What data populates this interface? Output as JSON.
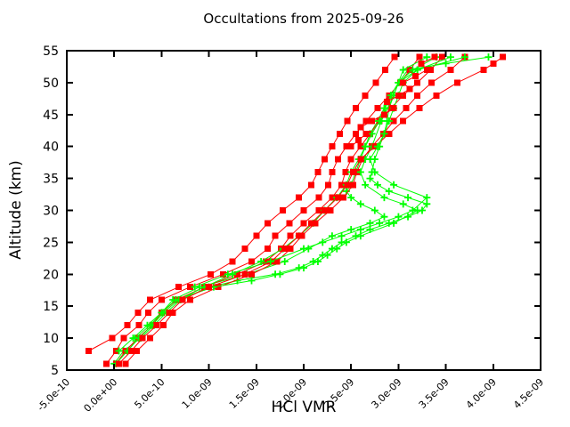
{
  "figure": {
    "title": "Occultations from 2025-09-26",
    "xlabel": "HCl VMR",
    "ylabel": "Altitude (km)"
  },
  "colors": {
    "background": "#ffffff",
    "axis": "#000000",
    "series_red": "#ff0000",
    "series_green": "#00ff00"
  },
  "chart_data": {
    "type": "line",
    "title": "Occultations from 2025-09-26",
    "xlabel": "HCl VMR",
    "ylabel": "Altitude (km)",
    "grid": false,
    "legend": "none",
    "x_units_note": "x values stored in units of 1e-9 VMR",
    "x_axis": {
      "min": -0.5,
      "max": 4.5,
      "tick_values": [
        -0.5,
        0.0,
        0.5,
        1.0,
        1.5,
        2.0,
        2.5,
        3.0,
        3.5,
        4.0,
        4.5
      ],
      "tick_labels": [
        "-5.0e-10",
        "0.0e+00",
        "5.0e-10",
        "1.0e-09",
        "1.5e-09",
        "2.0e-09",
        "2.5e-09",
        "3.0e-09",
        "3.5e-09",
        "4.0e-09",
        "4.5e-09"
      ]
    },
    "y_axis": {
      "min": 5,
      "max": 55,
      "tick_values": [
        5,
        10,
        15,
        20,
        25,
        30,
        35,
        40,
        45,
        50,
        55
      ],
      "tick_labels": [
        "5",
        "10",
        "15",
        "20",
        "25",
        "30",
        "35",
        "40",
        "45",
        "50",
        "55"
      ]
    },
    "series": [
      {
        "name": "occultation-profile-red-1",
        "color": "#ff0000",
        "marker": "square",
        "alt_km": [
          8,
          10,
          12,
          14,
          16,
          18,
          20,
          22,
          24,
          26,
          28,
          30,
          32,
          34,
          36,
          38,
          40,
          42,
          44,
          46,
          48,
          50,
          52,
          54
        ],
        "vmr_1e9": [
          -0.27,
          -0.02,
          0.14,
          0.25,
          0.38,
          0.68,
          1.02,
          1.25,
          1.38,
          1.5,
          1.62,
          1.78,
          1.95,
          2.08,
          2.15,
          2.22,
          2.3,
          2.38,
          2.46,
          2.55,
          2.65,
          2.76,
          2.86,
          2.96
        ]
      },
      {
        "name": "occultation-profile-green-1",
        "color": "#00ff00",
        "marker": "plus",
        "alt_km": [
          6,
          8,
          10,
          12,
          14,
          16,
          18,
          19,
          20,
          21,
          22,
          23,
          24,
          25,
          26,
          27,
          28,
          29,
          30,
          31,
          32,
          33,
          34,
          35,
          36,
          38,
          40,
          42,
          44,
          46,
          48,
          50,
          52,
          53,
          54
        ],
        "vmr_1e9": [
          0.0,
          0.1,
          0.28,
          0.42,
          0.55,
          0.7,
          1.0,
          1.3,
          1.7,
          1.95,
          2.1,
          2.2,
          2.3,
          2.4,
          2.55,
          2.7,
          2.9,
          3.1,
          3.25,
          3.3,
          3.1,
          2.9,
          2.78,
          2.7,
          2.72,
          2.75,
          2.8,
          2.85,
          2.88,
          2.9,
          2.95,
          3.0,
          3.1,
          3.5,
          3.95
        ]
      },
      {
        "name": "occultation-profile-red-2",
        "color": "#ff0000",
        "marker": "square",
        "alt_km": [
          6,
          8,
          10,
          12,
          14,
          16,
          18,
          20,
          22,
          24,
          26,
          28,
          30,
          32,
          34,
          36,
          38,
          40,
          42,
          44,
          46,
          48,
          50,
          52,
          54
        ],
        "vmr_1e9": [
          -0.08,
          0.02,
          0.1,
          0.26,
          0.36,
          0.5,
          0.8,
          1.15,
          1.45,
          1.62,
          1.7,
          1.85,
          2.0,
          2.16,
          2.26,
          2.3,
          2.36,
          2.45,
          2.55,
          2.66,
          2.78,
          2.9,
          3.02,
          3.12,
          3.22
        ]
      },
      {
        "name": "occultation-profile-green-2",
        "color": "#00ff00",
        "marker": "plus",
        "alt_km": [
          8,
          10,
          12,
          14,
          16,
          18,
          20,
          22,
          24,
          26,
          27,
          28,
          29,
          30,
          31,
          32,
          33,
          34,
          36,
          38,
          40,
          42,
          44,
          46,
          48,
          50,
          52,
          54
        ],
        "vmr_1e9": [
          0.05,
          0.2,
          0.35,
          0.5,
          0.62,
          0.9,
          1.4,
          1.8,
          2.05,
          2.3,
          2.5,
          2.7,
          2.85,
          2.75,
          2.6,
          2.5,
          2.45,
          2.5,
          2.55,
          2.6,
          2.65,
          2.7,
          2.78,
          2.85,
          2.92,
          3.0,
          3.15,
          3.4
        ]
      },
      {
        "name": "occultation-profile-red-3",
        "color": "#ff0000",
        "marker": "square",
        "alt_km": [
          6,
          8,
          10,
          12,
          14,
          16,
          18,
          20,
          22,
          24,
          26,
          28,
          30,
          32,
          34,
          36,
          38,
          40,
          42,
          44,
          46,
          48,
          50,
          52,
          54
        ],
        "vmr_1e9": [
          0.02,
          0.12,
          0.25,
          0.4,
          0.5,
          0.66,
          0.95,
          1.3,
          1.6,
          1.76,
          1.86,
          2.0,
          2.16,
          2.3,
          2.4,
          2.44,
          2.5,
          2.6,
          2.7,
          2.8,
          2.92,
          3.05,
          3.2,
          3.34,
          3.46
        ]
      },
      {
        "name": "occultation-profile-green-3",
        "color": "#00ff00",
        "marker": "plus",
        "alt_km": [
          6,
          8,
          10,
          12,
          14,
          16,
          18,
          20,
          22,
          24,
          26,
          28,
          30,
          32,
          34,
          36,
          38,
          40,
          42,
          44,
          46,
          48,
          50,
          52,
          54
        ],
        "vmr_1e9": [
          0.02,
          0.14,
          0.26,
          0.4,
          0.52,
          0.68,
          0.95,
          1.25,
          1.55,
          1.78,
          1.95,
          2.1,
          2.22,
          2.35,
          2.45,
          2.5,
          2.58,
          2.65,
          2.72,
          2.8,
          2.86,
          2.92,
          3.0,
          3.2,
          3.55
        ]
      },
      {
        "name": "occultation-profile-red-4",
        "color": "#ff0000",
        "marker": "square",
        "alt_km": [
          6,
          8,
          10,
          12,
          14,
          16,
          18,
          20,
          22,
          24,
          26,
          28,
          30,
          32,
          34,
          36,
          38,
          40,
          42,
          44,
          46,
          48,
          50,
          52,
          54
        ],
        "vmr_1e9": [
          0.12,
          0.24,
          0.38,
          0.52,
          0.62,
          0.8,
          1.1,
          1.45,
          1.72,
          1.86,
          1.98,
          2.12,
          2.28,
          2.42,
          2.52,
          2.56,
          2.62,
          2.72,
          2.84,
          2.95,
          3.08,
          3.2,
          3.35,
          3.55,
          3.7
        ]
      },
      {
        "name": "occultation-profile-green-4",
        "color": "#00ff00",
        "marker": "plus",
        "alt_km": [
          10,
          12,
          14,
          16,
          18,
          19,
          20,
          21,
          22,
          23,
          24,
          25,
          26,
          28,
          30,
          31,
          32,
          34,
          36,
          38,
          40,
          44,
          48,
          52,
          54
        ],
        "vmr_1e9": [
          0.22,
          0.38,
          0.5,
          0.65,
          1.05,
          1.45,
          1.75,
          2.0,
          2.15,
          2.25,
          2.35,
          2.45,
          2.6,
          2.95,
          3.2,
          3.05,
          2.85,
          2.65,
          2.6,
          2.65,
          2.72,
          2.82,
          2.95,
          3.05,
          3.3
        ]
      },
      {
        "name": "occultation-profile-red-5",
        "color": "#ff0000",
        "marker": "square",
        "alt_km": [
          6,
          8,
          10,
          12,
          14,
          16,
          18,
          20,
          22,
          24,
          26,
          28,
          30,
          32,
          34,
          36,
          38,
          40,
          42,
          44,
          46,
          48,
          50,
          52,
          53,
          54
        ],
        "vmr_1e9": [
          0.05,
          0.18,
          0.3,
          0.45,
          0.58,
          0.72,
          1.0,
          1.38,
          1.66,
          1.8,
          1.95,
          2.08,
          2.22,
          2.36,
          2.46,
          2.52,
          2.6,
          2.75,
          2.9,
          3.05,
          3.22,
          3.4,
          3.62,
          3.9,
          4.0,
          4.1
        ]
      },
      {
        "name": "occultation-profile-green-5",
        "color": "#00ff00",
        "marker": "plus",
        "alt_km": [
          18,
          20,
          22,
          24,
          25,
          26,
          27,
          28,
          29,
          30,
          32,
          34,
          36,
          38,
          40,
          42,
          44,
          46,
          48,
          50,
          52,
          54
        ],
        "vmr_1e9": [
          0.85,
          1.2,
          1.65,
          2.0,
          2.2,
          2.4,
          2.6,
          2.8,
          3.0,
          3.15,
          3.3,
          2.95,
          2.75,
          2.7,
          2.78,
          2.85,
          2.9,
          2.95,
          3.0,
          3.05,
          3.2,
          3.7
        ]
      },
      {
        "name": "occultation-profile-red-6",
        "color": "#ff0000",
        "marker": "square",
        "alt_km": [
          40,
          41,
          42,
          43,
          44,
          45,
          46,
          47,
          48,
          49,
          50,
          51,
          52,
          53,
          54
        ],
        "vmr_1e9": [
          2.5,
          2.58,
          2.66,
          2.6,
          2.72,
          2.85,
          2.95,
          2.88,
          3.0,
          3.12,
          3.05,
          3.18,
          3.3,
          3.24,
          3.38
        ]
      }
    ]
  }
}
